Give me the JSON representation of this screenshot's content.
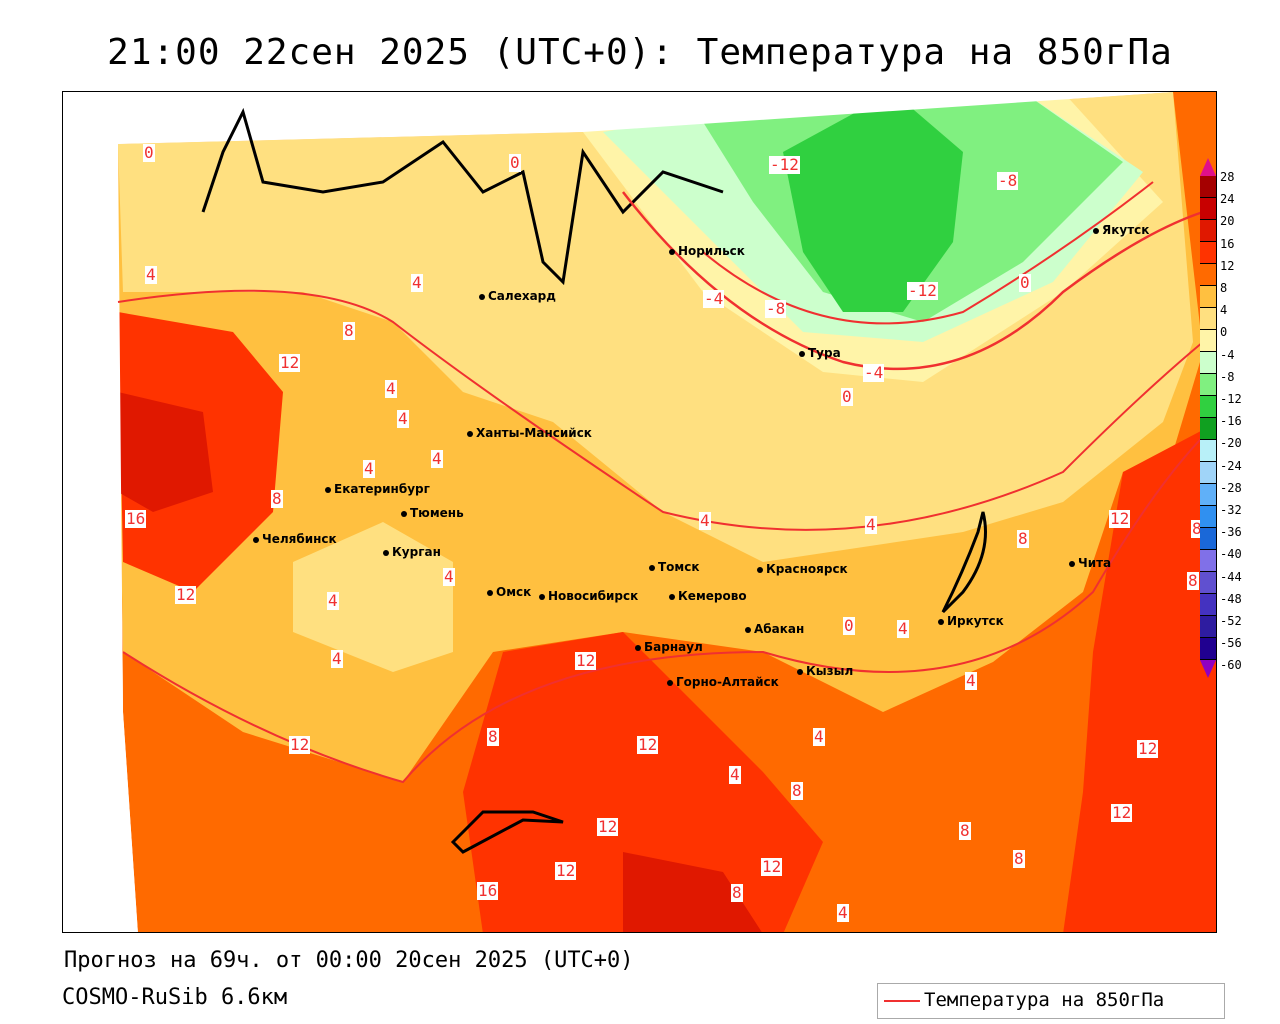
{
  "title": "21:00 22сен 2025 (UTC+0): Температура на 850гПа",
  "footer": {
    "forecast": "Прогноз на 69ч. от 00:00 20сен 2025 (UTC+0)",
    "model": "COSMO-RuSib 6.6км"
  },
  "legend": {
    "label": "Температура на 850гПа",
    "line_color": "#f03030"
  },
  "colorbar": {
    "labels": [
      "28",
      "24",
      "20",
      "16",
      "12",
      "8",
      "4",
      "0",
      "-4",
      "-8",
      "-12",
      "-16",
      "-20",
      "-24",
      "-28",
      "-32",
      "-36",
      "-40",
      "-44",
      "-48",
      "-52",
      "-56",
      "-60"
    ],
    "colors": [
      "#a50000",
      "#c80000",
      "#e01800",
      "#ff3300",
      "#ff6a00",
      "#ffc040",
      "#ffe080",
      "#fff4a8",
      "#ccffcc",
      "#80f080",
      "#30d040",
      "#10a020",
      "#b8f0f8",
      "#a0d4f8",
      "#60b0f8",
      "#3090f0",
      "#1a68d8",
      "#8070e8",
      "#6050d0",
      "#4432c0",
      "#2e1ca0",
      "#200090"
    ],
    "top_arrow_color": "#e0108a",
    "bottom_arrow_color": "#9000c0"
  },
  "cities": [
    "Норильск",
    "Якутск",
    "Салехард",
    "Тура",
    "Ханты-Мансийск",
    "Екатеринбург",
    "Тюмень",
    "Челябинск",
    "Курган",
    "Омск",
    "Новосибирск",
    "Томск",
    "Кемерово",
    "Красноярск",
    "Абакан",
    "Иркутск",
    "Чита",
    "Барнаул",
    "Горно-Алтайск",
    "Кызыл"
  ],
  "contour_labels": [
    "0",
    "0",
    "-12",
    "-8",
    "0",
    "-4",
    "-8",
    "-12",
    "-4",
    "0",
    "4",
    "4",
    "8",
    "12",
    "4",
    "4",
    "4",
    "4",
    "4",
    "8",
    "16",
    "12",
    "4",
    "4",
    "4",
    "4",
    "8",
    "12",
    "8",
    "8",
    "12",
    "8",
    "12",
    "12",
    "4",
    "4",
    "4",
    "8",
    "12",
    "12",
    "12",
    "12",
    "16",
    "12",
    "8",
    "8",
    "8",
    "4",
    "0",
    "4"
  ]
}
